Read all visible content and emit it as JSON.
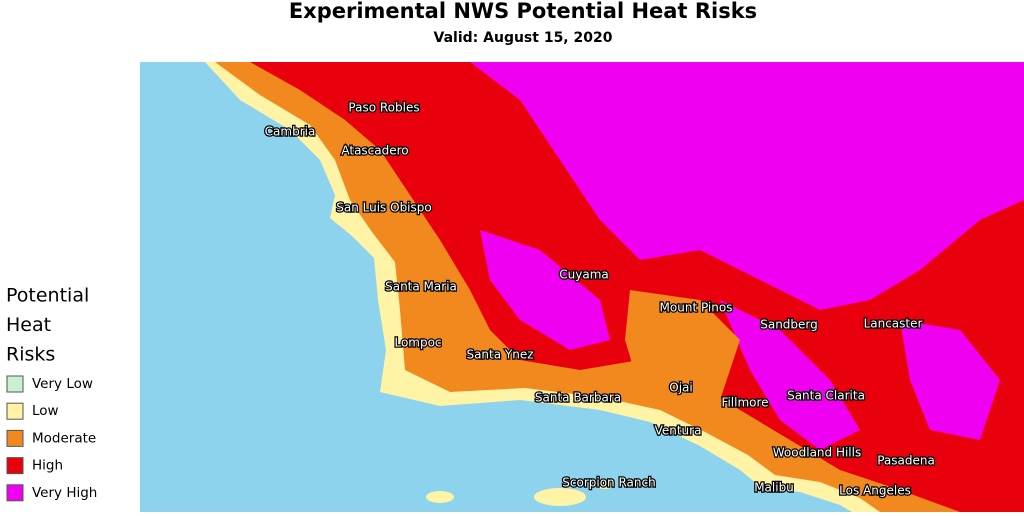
{
  "header": {
    "title": "Experimental NWS Potential Heat Risks",
    "subtitle": "Valid: August 15, 2020"
  },
  "legend": {
    "title_lines": [
      "Potential",
      "Heat",
      "Risks"
    ],
    "items": [
      {
        "label": "Very Low",
        "color": "#c6f2cf"
      },
      {
        "label": "Low",
        "color": "#fff3a6"
      },
      {
        "label": "Moderate",
        "color": "#f2891e"
      },
      {
        "label": "High",
        "color": "#e8000c"
      },
      {
        "label": "Very High",
        "color": "#f000f0"
      }
    ]
  },
  "places": [
    "Paso Robles",
    "Cambria",
    "Atascadero",
    "San Luis Obispo",
    "Cuyama",
    "Santa Maria",
    "Mount Pinos",
    "Sandberg",
    "Lancaster",
    "Lompoc",
    "Santa Ynez",
    "Ojai",
    "Santa Barbara",
    "Fillmore",
    "Santa Clarita",
    "Ventura",
    "Woodland Hills",
    "Pasadena",
    "Scorpion Ranch",
    "Malibu",
    "Los Angeles"
  ]
}
